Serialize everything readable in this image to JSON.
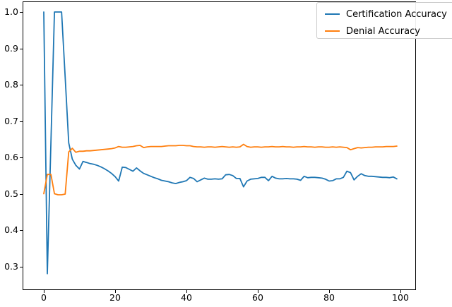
{
  "figure": {
    "background": "#ffffff",
    "axes_edge_color": "#000000"
  },
  "chart_data": {
    "type": "line",
    "title": "",
    "xlabel": "",
    "ylabel": "",
    "grid": false,
    "legend_position": "upper-right",
    "xlim": [
      -5.74,
      104.16
    ],
    "ylim": [
      0.2369,
      1.0272
    ],
    "x_ticks": [
      0,
      20,
      40,
      60,
      80,
      100
    ],
    "y_ticks": [
      0.3,
      0.4,
      0.5,
      0.6,
      0.7,
      0.8,
      0.9,
      1.0
    ],
    "x": [
      0,
      1,
      2,
      3,
      4,
      5,
      6,
      7,
      8,
      9,
      10,
      11,
      12,
      13,
      14,
      15,
      16,
      17,
      18,
      19,
      20,
      21,
      22,
      23,
      24,
      25,
      26,
      27,
      28,
      29,
      30,
      31,
      32,
      33,
      34,
      35,
      36,
      37,
      38,
      39,
      40,
      41,
      42,
      43,
      44,
      45,
      46,
      47,
      48,
      49,
      50,
      51,
      52,
      53,
      54,
      55,
      56,
      57,
      58,
      59,
      60,
      61,
      62,
      63,
      64,
      65,
      66,
      67,
      68,
      69,
      70,
      71,
      72,
      73,
      74,
      75,
      76,
      77,
      78,
      79,
      80,
      81,
      82,
      83,
      84,
      85,
      86,
      87,
      88,
      89,
      90,
      91,
      92,
      93,
      94,
      95,
      96,
      97,
      98,
      99
    ],
    "series": [
      {
        "name": "Certification Accuracy",
        "color": "#1f77b4",
        "values": [
          1.0,
          0.28,
          0.64,
          1.0,
          1.0,
          1.0,
          0.82,
          0.64,
          0.595,
          0.578,
          0.568,
          0.589,
          0.586,
          0.583,
          0.581,
          0.578,
          0.574,
          0.569,
          0.563,
          0.556,
          0.547,
          0.535,
          0.573,
          0.572,
          0.567,
          0.562,
          0.571,
          0.563,
          0.556,
          0.552,
          0.548,
          0.544,
          0.541,
          0.537,
          0.535,
          0.533,
          0.53,
          0.528,
          0.531,
          0.533,
          0.536,
          0.545,
          0.542,
          0.533,
          0.538,
          0.543,
          0.54,
          0.54,
          0.541,
          0.54,
          0.541,
          0.552,
          0.553,
          0.55,
          0.542,
          0.542,
          0.519,
          0.535,
          0.54,
          0.541,
          0.542,
          0.545,
          0.545,
          0.536,
          0.548,
          0.543,
          0.541,
          0.541,
          0.542,
          0.541,
          0.541,
          0.54,
          0.537,
          0.548,
          0.544,
          0.545,
          0.545,
          0.544,
          0.543,
          0.54,
          0.535,
          0.536,
          0.541,
          0.541,
          0.545,
          0.562,
          0.558,
          0.538,
          0.548,
          0.555,
          0.55,
          0.548,
          0.548,
          0.547,
          0.546,
          0.545,
          0.545,
          0.544,
          0.546,
          0.541
        ]
      },
      {
        "name": "Denial Accuracy",
        "color": "#ff7f0e",
        "values": [
          0.5,
          0.553,
          0.553,
          0.5,
          0.497,
          0.497,
          0.499,
          0.615,
          0.625,
          0.614,
          0.617,
          0.617,
          0.618,
          0.618,
          0.619,
          0.62,
          0.621,
          0.622,
          0.623,
          0.624,
          0.626,
          0.63,
          0.628,
          0.628,
          0.629,
          0.63,
          0.632,
          0.633,
          0.627,
          0.629,
          0.63,
          0.63,
          0.63,
          0.63,
          0.631,
          0.632,
          0.632,
          0.632,
          0.633,
          0.633,
          0.632,
          0.632,
          0.63,
          0.629,
          0.629,
          0.628,
          0.629,
          0.629,
          0.628,
          0.629,
          0.63,
          0.629,
          0.628,
          0.629,
          0.628,
          0.629,
          0.636,
          0.63,
          0.628,
          0.629,
          0.629,
          0.628,
          0.629,
          0.629,
          0.63,
          0.629,
          0.629,
          0.63,
          0.629,
          0.629,
          0.628,
          0.629,
          0.629,
          0.63,
          0.629,
          0.629,
          0.628,
          0.629,
          0.629,
          0.628,
          0.628,
          0.629,
          0.628,
          0.629,
          0.628,
          0.627,
          0.621,
          0.624,
          0.627,
          0.626,
          0.627,
          0.628,
          0.628,
          0.629,
          0.629,
          0.629,
          0.63,
          0.63,
          0.63,
          0.631
        ]
      }
    ]
  },
  "legend": {
    "items": [
      {
        "label": "Certification Accuracy",
        "color": "#1f77b4"
      },
      {
        "label": "Denial Accuracy",
        "color": "#ff7f0e"
      }
    ]
  }
}
